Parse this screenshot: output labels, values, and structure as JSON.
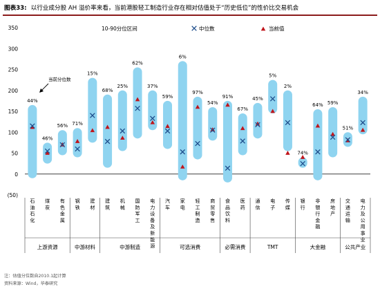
{
  "figure": {
    "label": "图表33:",
    "title": "以行业成分股 AH 溢价率来看，当前港股轻工制造行业存在相对估值处于“历史低位”的性价比交易机会"
  },
  "notes": {
    "note": "注：估值分位数自2010.1起计算",
    "source": "资料来源：Wind，华泰研究"
  },
  "colors": {
    "range_bar": "#8fd4f0",
    "median_marker": "#1f4e8c",
    "current_marker": "#c0151b",
    "brand_rule": "#8b1a1a"
  },
  "chart_data": {
    "type": "range-bar",
    "ylim": [
      -50,
      350
    ],
    "yticks": [
      -50,
      0,
      50,
      100,
      150,
      200,
      250,
      300,
      350
    ],
    "ytick_labels": [
      "(50)",
      "0",
      "50",
      "100",
      "150",
      "200",
      "250",
      "300",
      "350"
    ],
    "grid": false,
    "legend_position": "top",
    "legend": {
      "range": "10-90分位区间",
      "median": "中位数",
      "current": "当前值"
    },
    "annotation": "当前分位数",
    "categories": [
      "石油石化",
      "煤炭",
      "有色金属",
      "钢铁",
      "建材",
      "建筑",
      "机械",
      "国防军工",
      "电力设备及新能源",
      "汽车",
      "家电",
      "轻工制造",
      "商贸零售",
      "食品饮料",
      "医药",
      "通信",
      "电子",
      "传媒",
      "银行",
      "非银行金融",
      "房地产",
      "交通运输",
      "电力及公用事业"
    ],
    "category_labels": [
      "石\n油\n石\n化",
      "煤\n炭",
      "有\n色\n金\n属",
      "钢\n铁",
      "建\n材",
      "建\n筑",
      "机\n械",
      "国\n防\n军\n工",
      "电\n力\n设\n备\n及\n新\n能\n源",
      "汽\n车",
      "家\n电",
      "轻\n工\n制\n造",
      "商\n贸\n零\n售",
      "食\n品\n饮\n料",
      "医\n药",
      "通\n信",
      "电\n子",
      "传\n媒",
      "银\n行",
      "非\n银\n行\n金\n融",
      "房\n地\n产",
      "交\n通\n运\n输",
      "电\n力\n及\n公\n用\n事\n业"
    ],
    "groups": [
      {
        "name": "上游资源",
        "count": 3
      },
      {
        "name": "中游材料",
        "count": 2
      },
      {
        "name": "中游制造",
        "count": 4
      },
      {
        "name": "可选消费",
        "count": 4
      },
      {
        "name": "必需消费",
        "count": 2
      },
      {
        "name": "TMT",
        "count": 3
      },
      {
        "name": "大金融",
        "count": 3
      },
      {
        "name": "公共产业",
        "count": 2
      }
    ],
    "series": [
      {
        "name": "10-90分位区间",
        "low": [
          -10,
          25,
          45,
          40,
          75,
          15,
          55,
          85,
          105,
          60,
          -15,
          35,
          80,
          -20,
          45,
          85,
          145,
          55,
          15,
          -15,
          40,
          65,
          95
        ],
        "high": [
          165,
          75,
          105,
          110,
          230,
          190,
          200,
          255,
          200,
          175,
          270,
          185,
          160,
          175,
          145,
          170,
          225,
          200,
          40,
          155,
          160,
          100,
          185
        ]
      },
      {
        "name": "中位数",
        "values": [
          115,
          55,
          70,
          60,
          140,
          78,
          103,
          157,
          133,
          103,
          53,
          73,
          105,
          14,
          79,
          118,
          180,
          123,
          25,
          53,
          88,
          82,
          123
        ]
      },
      {
        "name": "当前值",
        "values": [
          112,
          50,
          70,
          78,
          104,
          112,
          86,
          178,
          123,
          114,
          17,
          160,
          106,
          165,
          109,
          120,
          150,
          50,
          40,
          115,
          95,
          80,
          105
        ]
      }
    ],
    "percentile_labels": [
      "44%",
      "46%",
      "56%",
      "71%",
      "15%",
      "68%",
      "25%",
      "62%",
      "37%",
      "59%",
      "6%",
      "97%",
      "54%",
      "91%",
      "67%",
      "45%",
      "5%",
      "2%",
      "74%",
      "64%",
      "59%",
      "51%",
      "34%"
    ]
  }
}
